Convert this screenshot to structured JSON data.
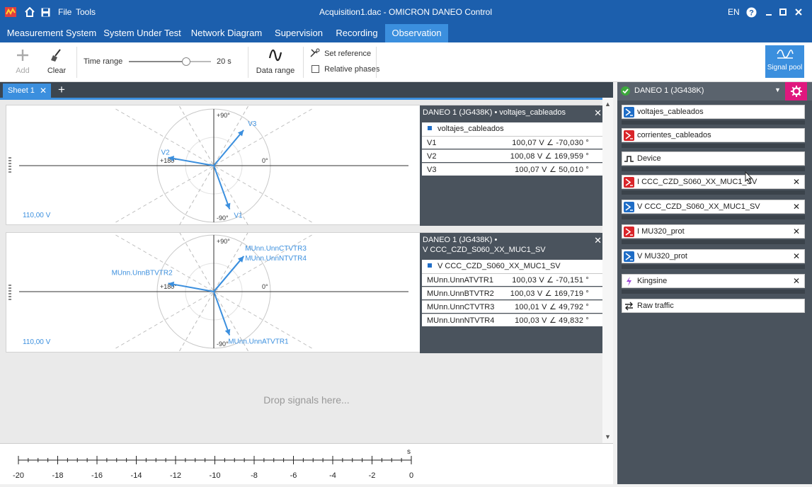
{
  "title": {
    "menu_file": "File",
    "menu_tools": "Tools",
    "window_title": "Acquisition1.dac - OMICRON DANEO Control",
    "language": "EN"
  },
  "tabs": [
    {
      "label": "Measurement System"
    },
    {
      "label": "System Under Test"
    },
    {
      "label": "Network Diagram"
    },
    {
      "label": "Supervision"
    },
    {
      "label": "Recording"
    },
    {
      "label": "Observation"
    }
  ],
  "ribbon": {
    "add_label": "Add",
    "clear_label": "Clear",
    "time_range_label": "Time range",
    "time_range_value": "20 s",
    "time_range_fraction": 0.7,
    "data_range_label": "Data range",
    "set_reference_label": "Set reference",
    "relative_phases_label": "Relative phases",
    "relative_phases_checked": false,
    "signal_pool_label": "Signal pool"
  },
  "sheets": [
    {
      "label": "Sheet 1"
    }
  ],
  "phasor_panels": [
    {
      "scale": "110,00 V",
      "ticks": {
        "top": "+90°",
        "left": "+180°",
        "right": "0°",
        "bottom": "-90°"
      },
      "header": "DANEO 1 (JG438K) • voltajes_cableados",
      "signal": "voltajes_cableados",
      "vectors": [
        {
          "name": "V1",
          "mag": 100.07,
          "angle": -70.03,
          "value": "100,07 V ∠ -70,030 °"
        },
        {
          "name": "V2",
          "mag": 100.08,
          "angle": 169.959,
          "value": "100,08 V ∠ 169,959 °"
        },
        {
          "name": "V3",
          "mag": 100.07,
          "angle": 50.01,
          "value": "100,07 V ∠ 50,010 °"
        }
      ]
    },
    {
      "scale": "110,00 V",
      "ticks": {
        "top": "+90°",
        "left": "+180°",
        "right": "0°",
        "bottom": "-90°"
      },
      "header": "DANEO 1 (JG438K) •\nV CCC_CZD_S060_XX_MUC1_SV",
      "signal": "V CCC_CZD_S060_XX_MUC1_SV",
      "vectors": [
        {
          "name": "MUnn.UnnATVTR1",
          "mag": 100.03,
          "angle": -70.151,
          "value": "100,03 V ∠ -70,151 °"
        },
        {
          "name": "MUnn.UnnBTVTR2",
          "mag": 100.03,
          "angle": 169.719,
          "value": "100,03 V ∠ 169,719 °"
        },
        {
          "name": "MUnn.UnnCTVTR3",
          "mag": 100.01,
          "angle": 49.792,
          "value": "100,01 V ∠ 49,792 °"
        },
        {
          "name": "MUnn.UnnNTVTR4",
          "mag": 100.03,
          "angle": 49.832,
          "value": "100,03 V ∠ 49,832 °"
        }
      ]
    }
  ],
  "drop_hint": "Drop signals here...",
  "time_axis": {
    "unit": "s",
    "labels": [
      "-20",
      "-18",
      "-16",
      "-14",
      "-12",
      "-10",
      "-8",
      "-6",
      "-4",
      "-2",
      "0"
    ]
  },
  "side": {
    "device": "DANEO 1 (JG438K)",
    "signals": [
      {
        "label": "voltajes_cableados",
        "icon": "voltage-signal-icon",
        "color": "#1f6dc6",
        "closable": false
      },
      {
        "label": "corrientes_cableados",
        "icon": "current-signal-icon",
        "color": "#d9252a",
        "closable": false
      },
      {
        "label": "Device",
        "icon": "pulse-icon",
        "color": "#ffffff",
        "closable": false
      },
      {
        "label": "I CCC_CZD_S060_XX_MUC1_SV",
        "icon": "current-signal-icon",
        "color": "#d9252a",
        "closable": true
      },
      {
        "label": "V CCC_CZD_S060_XX_MUC1_SV",
        "icon": "voltage-signal-icon",
        "color": "#1f6dc6",
        "closable": true
      },
      {
        "label": "I MU320_prot",
        "icon": "current-signal-icon",
        "color": "#d9252a",
        "closable": true
      },
      {
        "label": "V MU320_prot",
        "icon": "voltage-signal-icon",
        "color": "#1f6dc6",
        "closable": true
      },
      {
        "label": "Kingsine",
        "icon": "lightning-icon",
        "color": "#ffffff",
        "closable": true
      },
      {
        "label": "Raw traffic",
        "icon": "traffic-icon",
        "color": "#ffffff",
        "closable": false
      }
    ]
  },
  "colors": {
    "accent": "#3b8fde",
    "titlebar": "#1c5fad",
    "vector": "#3b8fde",
    "side_panel": "#4a535d",
    "gear": "#e0187e"
  }
}
